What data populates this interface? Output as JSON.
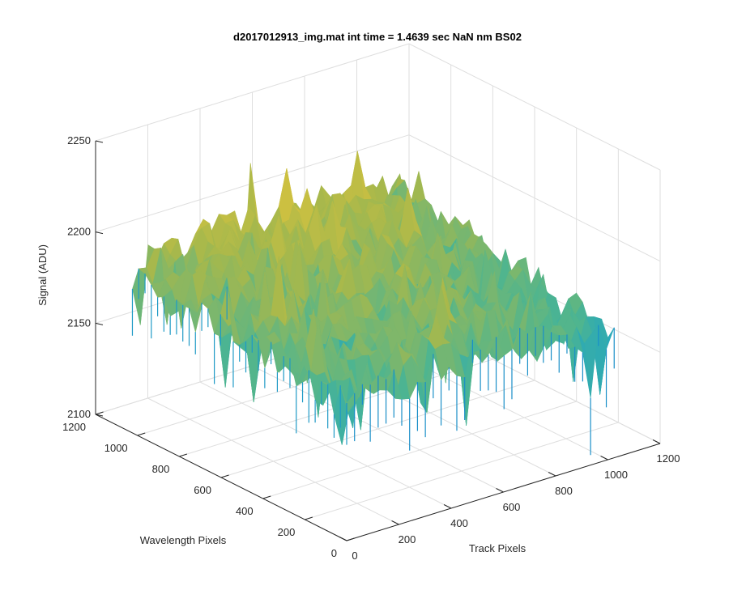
{
  "chart_data": {
    "type": "surface",
    "title": "d2017012913_img.mat int time = 1.4639 sec  NaN nm BS02",
    "xlabel": "Track Pixels",
    "ylabel": "Wavelength Pixels",
    "zlabel": "Signal (ADU)",
    "xlim": [
      0,
      1200
    ],
    "ylim": [
      0,
      1200
    ],
    "zlim": [
      2100,
      2250
    ],
    "xticks": [
      "0",
      "200",
      "400",
      "600",
      "800",
      "1000",
      "1200"
    ],
    "yticks": [
      "0",
      "200",
      "400",
      "600",
      "800",
      "1000",
      "1200"
    ],
    "zticks": [
      "2100",
      "2150",
      "2200",
      "2250"
    ],
    "grid": true,
    "colormap": [
      "#0072BD",
      "#1AA4C9",
      "#4FB58F",
      "#A6B84C",
      "#E6C53A"
    ],
    "surface_extent": {
      "x": [
        0,
        1024
      ],
      "y": [
        0,
        1024
      ]
    },
    "surface_summary": {
      "typical_signal_range": [
        2160,
        2200
      ],
      "min_spikes_approx": 2120,
      "max_spikes_approx": 2215,
      "trend": "signal higher toward large Wavelength Pixels and mid Track Pixels; noisy low spikes near Wavelength 0"
    }
  }
}
